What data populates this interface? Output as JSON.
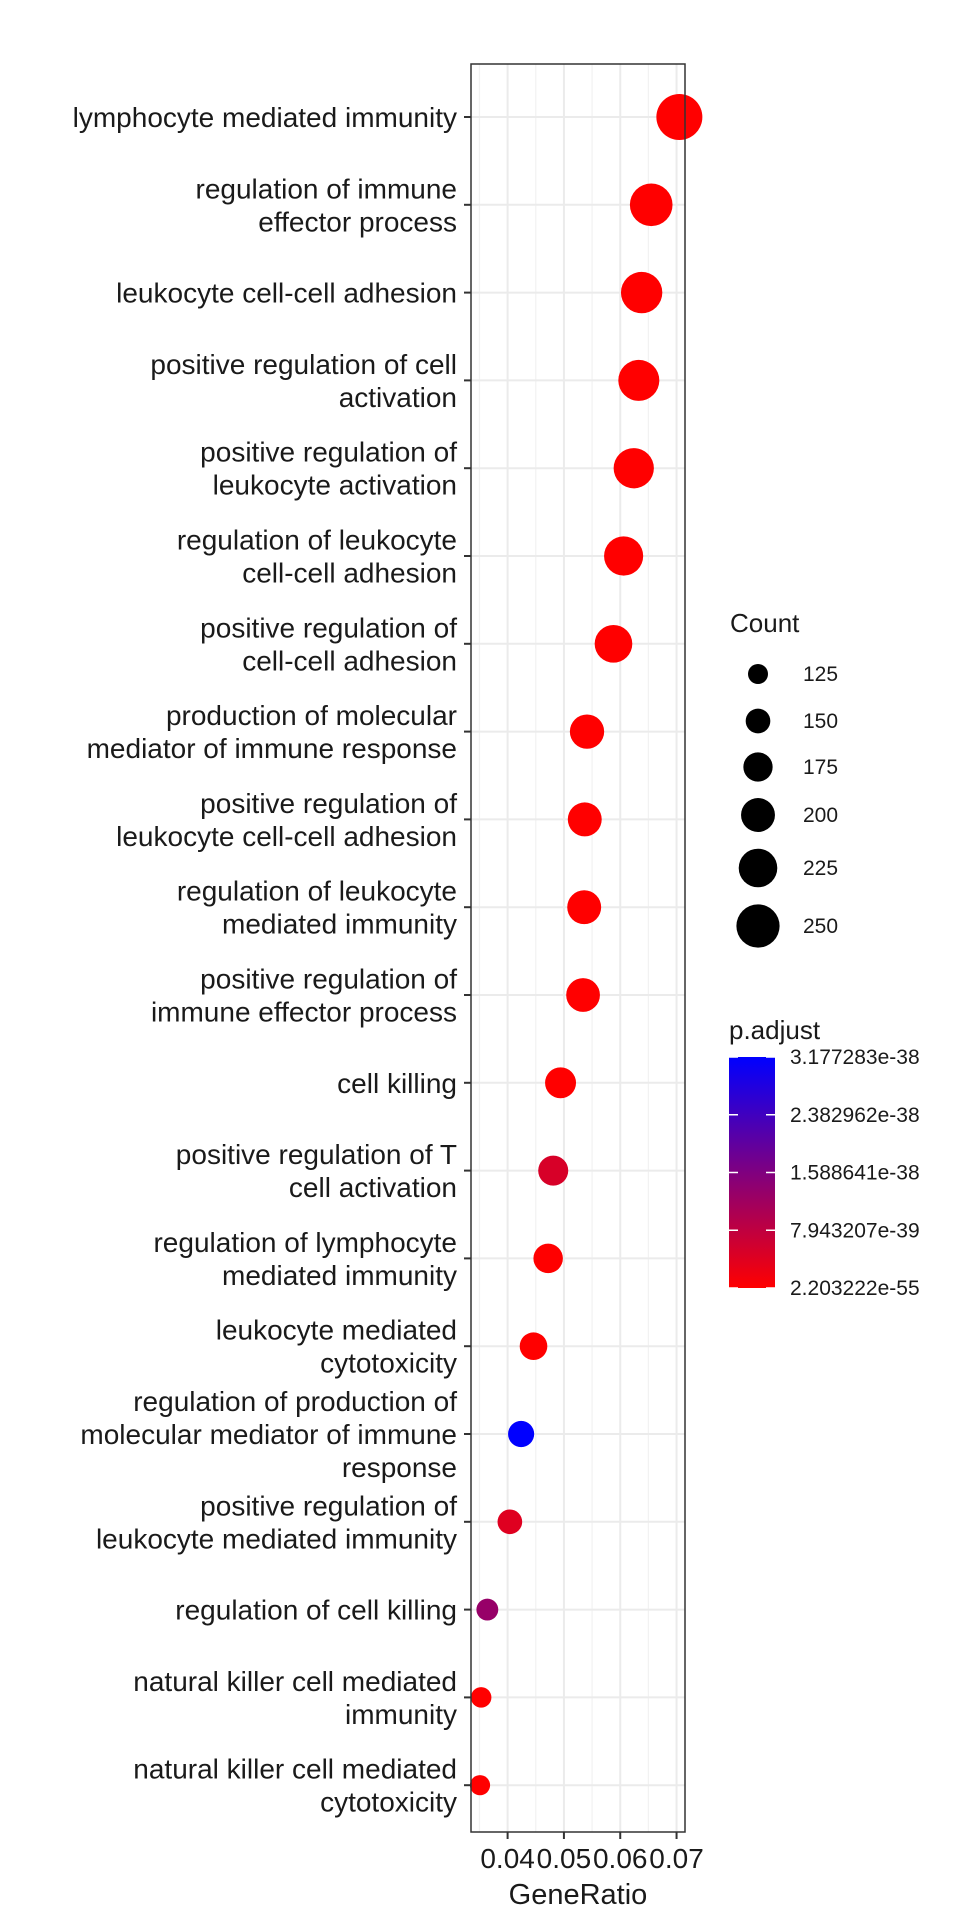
{
  "chart_data": {
    "type": "scatter",
    "xlabel": "GeneRatio",
    "ylabel": "",
    "xlim": [
      0.0335,
      0.0715
    ],
    "x_ticks": [
      {
        "value": 0.04,
        "label": "0.04"
      },
      {
        "value": 0.05,
        "label": "0.05"
      },
      {
        "value": 0.06,
        "label": "0.06"
      },
      {
        "value": 0.07,
        "label": "0.07"
      }
    ],
    "grid": true,
    "legend_placement": "right",
    "categories": [
      {
        "label_lines": [
          "lymphocyte mediated immunity"
        ],
        "x": 0.0705,
        "count": 265,
        "p_adjust": 2.203222e-55
      },
      {
        "label_lines": [
          "regulation of immune",
          "effector process"
        ],
        "x": 0.0655,
        "count": 247,
        "p_adjust": 2.203222e-55
      },
      {
        "label_lines": [
          "leukocyte cell-cell adhesion"
        ],
        "x": 0.0638,
        "count": 240,
        "p_adjust": 2.203222e-55
      },
      {
        "label_lines": [
          "positive regulation of cell",
          "activation"
        ],
        "x": 0.0633,
        "count": 238,
        "p_adjust": 2.203222e-55
      },
      {
        "label_lines": [
          "positive regulation of",
          "leukocyte activation"
        ],
        "x": 0.0624,
        "count": 234,
        "p_adjust": 2.203222e-55
      },
      {
        "label_lines": [
          "regulation of leukocyte",
          "cell-cell adhesion"
        ],
        "x": 0.0606,
        "count": 228,
        "p_adjust": 2.203222e-55
      },
      {
        "label_lines": [
          "positive regulation of",
          "cell-cell adhesion"
        ],
        "x": 0.0588,
        "count": 220,
        "p_adjust": 2.203222e-55
      },
      {
        "label_lines": [
          "production of molecular",
          "mediator of immune response"
        ],
        "x": 0.0541,
        "count": 202,
        "p_adjust": 2.203222e-55
      },
      {
        "label_lines": [
          "positive regulation of",
          "leukocyte cell-cell adhesion"
        ],
        "x": 0.0537,
        "count": 200,
        "p_adjust": 2.203222e-55
      },
      {
        "label_lines": [
          "regulation of leukocyte",
          "mediated immunity"
        ],
        "x": 0.0536,
        "count": 200,
        "p_adjust": 2.203222e-55
      },
      {
        "label_lines": [
          "positive regulation of",
          "immune effector process"
        ],
        "x": 0.0534,
        "count": 199,
        "p_adjust": 2.203222e-55
      },
      {
        "label_lines": [
          "cell killing"
        ],
        "x": 0.0494,
        "count": 184,
        "p_adjust": 2.203222e-55
      },
      {
        "label_lines": [
          "positive regulation of T",
          "cell activation"
        ],
        "x": 0.0481,
        "count": 179,
        "p_adjust": 5e-39
      },
      {
        "label_lines": [
          "regulation of lymphocyte",
          "mediated immunity"
        ],
        "x": 0.0472,
        "count": 176,
        "p_adjust": 2.203222e-55
      },
      {
        "label_lines": [
          "leukocyte mediated",
          "cytotoxicity"
        ],
        "x": 0.0446,
        "count": 166,
        "p_adjust": 2.203222e-55
      },
      {
        "label_lines": [
          "regulation of production of",
          "molecular mediator of immune",
          "response"
        ],
        "x": 0.0424,
        "count": 158,
        "p_adjust": 3.177283e-38
      },
      {
        "label_lines": [
          "positive regulation of",
          "leukocyte mediated immunity"
        ],
        "x": 0.0404,
        "count": 150,
        "p_adjust": 4e-39
      },
      {
        "label_lines": [
          "regulation of cell killing"
        ],
        "x": 0.0364,
        "count": 135,
        "p_adjust": 1.3e-38
      },
      {
        "label_lines": [
          "natural killer cell mediated",
          "immunity"
        ],
        "x": 0.0353,
        "count": 128,
        "p_adjust": 2.203222e-55
      },
      {
        "label_lines": [
          "natural killer cell mediated",
          "cytotoxicity"
        ],
        "x": 0.0351,
        "count": 126,
        "p_adjust": 2.203222e-55
      }
    ],
    "legend_size": {
      "title": "Count",
      "entries": [
        {
          "value": 125,
          "label": "125"
        },
        {
          "value": 150,
          "label": "150"
        },
        {
          "value": 175,
          "label": "175"
        },
        {
          "value": 200,
          "label": "200"
        },
        {
          "value": 225,
          "label": "225"
        },
        {
          "value": 250,
          "label": "250"
        }
      ]
    },
    "legend_color": {
      "title": "p.adjust",
      "low_color": "#ff0000",
      "high_color": "#0000ff",
      "low_value": 2.203222e-55,
      "high_value": 3.177283e-38,
      "ticks": [
        {
          "value": 3.177283e-38,
          "label": "3.177283e-38"
        },
        {
          "value": 2.382962e-38,
          "label": "2.382962e-38"
        },
        {
          "value": 1.588641e-38,
          "label": "1.588641e-38"
        },
        {
          "value": 7.943207e-39,
          "label": "7.943207e-39"
        },
        {
          "value": 2.203222e-55,
          "label": "2.203222e-55"
        }
      ]
    }
  }
}
